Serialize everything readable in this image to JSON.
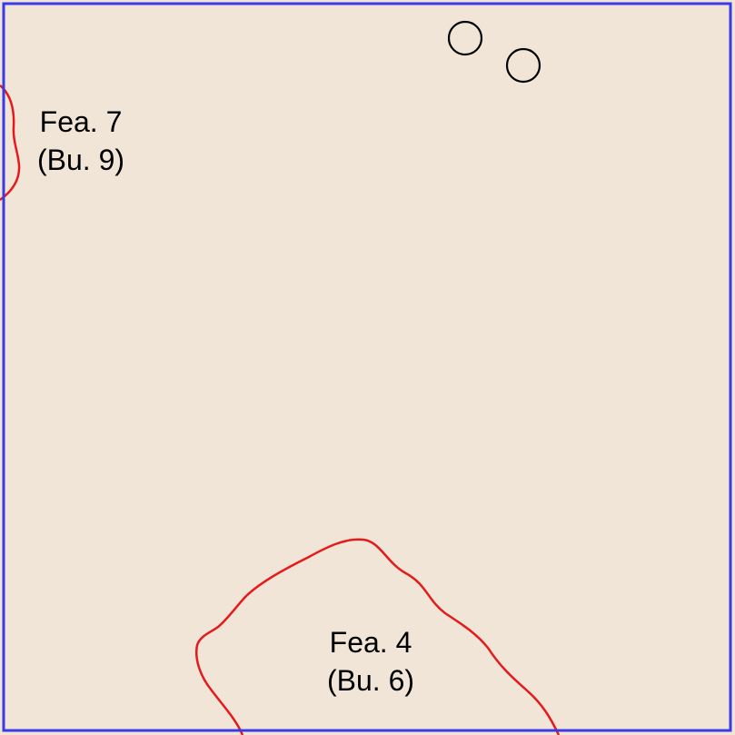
{
  "features": [
    {
      "id": "fea-7",
      "name": "Fea. 7",
      "burial": "(Bu. 9)"
    },
    {
      "id": "fea-4",
      "name": "Fea. 4",
      "burial": "(Bu. 6)"
    }
  ],
  "postholes_count": 2,
  "colors": {
    "background": "#f1e5d7",
    "unit_border": "#3a3ae6",
    "feature_outline": "#e41a1c",
    "posthole_outline": "#000000",
    "label_text": "#000000"
  }
}
